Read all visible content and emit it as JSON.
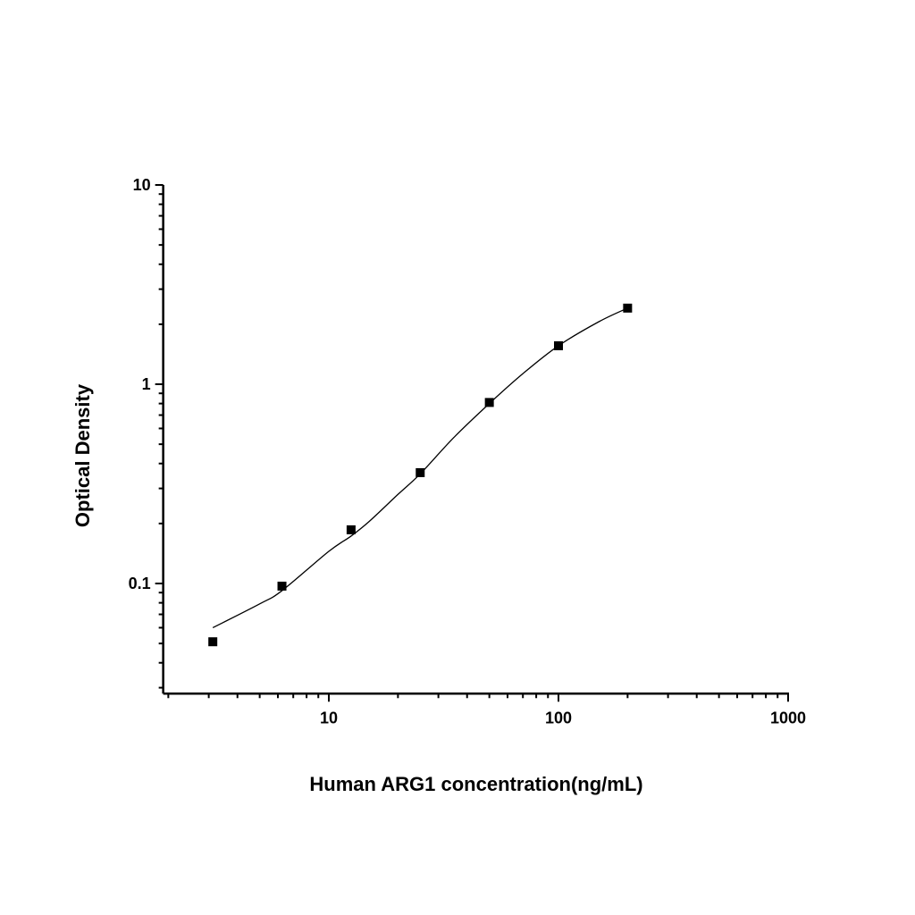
{
  "chart_data": {
    "type": "scatter",
    "title": "",
    "xlabel": "Human ARG1 concentration(ng/mL)",
    "ylabel": "Optical Density",
    "xscale": "log",
    "yscale": "log",
    "xlim": [
      1.9,
      1000
    ],
    "ylim": [
      0.028,
      10
    ],
    "x_ticks": [
      10,
      100,
      1000
    ],
    "x_tick_labels": [
      "10",
      "100",
      "1000"
    ],
    "y_ticks": [
      0.1,
      1,
      10
    ],
    "y_tick_labels": [
      "0.1",
      "1",
      "10"
    ],
    "grid": false,
    "legend": "none",
    "marker": "square",
    "color": "#000000",
    "points": {
      "x": [
        3.125,
        6.25,
        12.5,
        25,
        50,
        100,
        200
      ],
      "y": [
        0.051,
        0.097,
        0.186,
        0.36,
        0.81,
        1.56,
        2.41
      ]
    },
    "fit_curve": {
      "x": [
        3.125,
        5,
        6.25,
        10,
        12.5,
        15,
        20,
        25,
        35,
        50,
        70,
        100,
        150,
        200
      ],
      "y": [
        0.06,
        0.079,
        0.092,
        0.145,
        0.173,
        0.205,
        0.28,
        0.355,
        0.54,
        0.8,
        1.13,
        1.56,
        2.06,
        2.41
      ]
    }
  }
}
